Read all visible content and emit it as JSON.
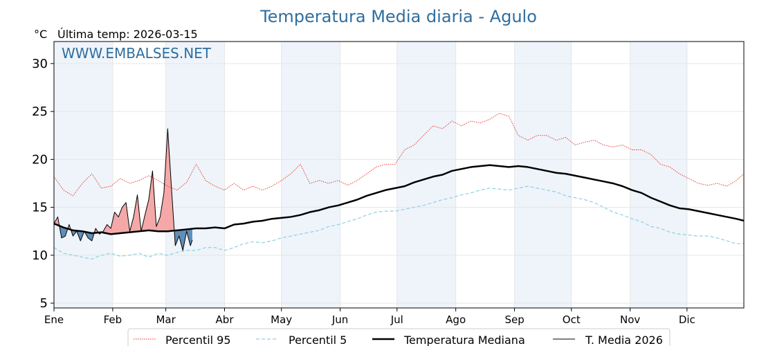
{
  "chart_data": {
    "type": "line",
    "title": "Temperatura Media diaria - Agulo",
    "unit_label": "°C",
    "subtitle": "Última temp: 2026-03-15",
    "watermark": "WWW.EMBALSES.NET",
    "x_tick_labels": [
      "Ene",
      "Feb",
      "Mar",
      "Abr",
      "May",
      "Jun",
      "Jul",
      "Ago",
      "Sep",
      "Oct",
      "Nov",
      "Dic"
    ],
    "x_tick_days": [
      1,
      32,
      60,
      91,
      121,
      152,
      182,
      213,
      244,
      274,
      305,
      335
    ],
    "xlim": [
      1,
      365
    ],
    "ylim": [
      4.5,
      32.3
    ],
    "y_ticks": [
      5,
      10,
      15,
      20,
      25,
      30
    ],
    "grid": true,
    "shaded_month_bands": true,
    "legend_position": "bottom-center",
    "colors": {
      "title": "#2f6e9f",
      "p95": "#e8281e",
      "p5": "#8ecfe4",
      "median": "#000000",
      "current": "#000000",
      "above_fill": "#f4a8a8",
      "below_fill": "#5f8fb8",
      "band": "#eef4fa"
    },
    "series": [
      {
        "name": "Percentil 95",
        "style": "dotted-red",
        "x": [
          1,
          6,
          11,
          16,
          21,
          26,
          31,
          36,
          41,
          46,
          51,
          56,
          61,
          66,
          71,
          76,
          81,
          86,
          91,
          96,
          101,
          106,
          111,
          116,
          121,
          126,
          131,
          136,
          141,
          146,
          151,
          156,
          161,
          166,
          171,
          176,
          181,
          186,
          191,
          196,
          201,
          206,
          211,
          216,
          221,
          226,
          231,
          236,
          241,
          246,
          251,
          256,
          261,
          266,
          271,
          276,
          281,
          286,
          291,
          296,
          301,
          306,
          311,
          316,
          321,
          326,
          331,
          336,
          341,
          346,
          351,
          356,
          361,
          365
        ],
        "y": [
          18.2,
          16.8,
          16.2,
          17.5,
          18.5,
          17.0,
          17.2,
          18.0,
          17.5,
          17.8,
          18.3,
          17.8,
          17.2,
          16.8,
          17.6,
          19.5,
          17.8,
          17.2,
          16.8,
          17.5,
          16.8,
          17.2,
          16.8,
          17.2,
          17.8,
          18.5,
          19.5,
          17.5,
          17.8,
          17.5,
          17.8,
          17.3,
          17.8,
          18.5,
          19.2,
          19.5,
          19.5,
          21.0,
          21.5,
          22.5,
          23.5,
          23.2,
          24.0,
          23.5,
          24.0,
          23.8,
          24.2,
          24.8,
          24.5,
          22.5,
          22.0,
          22.5,
          22.5,
          22.0,
          22.3,
          21.5,
          21.8,
          22.0,
          21.5,
          21.3,
          21.5,
          21.0,
          21.0,
          20.5,
          19.5,
          19.2,
          18.5,
          18.0,
          17.5,
          17.3,
          17.5,
          17.2,
          17.8,
          18.5
        ]
      },
      {
        "name": "Percentil 5",
        "style": "dashed-lightblue",
        "x": [
          1,
          6,
          11,
          16,
          21,
          26,
          31,
          36,
          41,
          46,
          51,
          56,
          61,
          66,
          71,
          76,
          81,
          86,
          91,
          96,
          101,
          106,
          111,
          116,
          121,
          126,
          131,
          136,
          141,
          146,
          151,
          156,
          161,
          166,
          171,
          176,
          181,
          186,
          191,
          196,
          201,
          206,
          211,
          216,
          221,
          226,
          231,
          236,
          241,
          246,
          251,
          256,
          261,
          266,
          271,
          276,
          281,
          286,
          291,
          296,
          301,
          306,
          311,
          316,
          321,
          326,
          331,
          336,
          341,
          346,
          351,
          356,
          361,
          365
        ],
        "y": [
          10.8,
          10.2,
          10.0,
          9.8,
          9.6,
          10.0,
          10.2,
          9.9,
          10.0,
          10.2,
          9.8,
          10.2,
          10.0,
          10.3,
          10.5,
          10.5,
          10.8,
          10.8,
          10.5,
          10.8,
          11.2,
          11.4,
          11.3,
          11.5,
          11.8,
          12.0,
          12.2,
          12.4,
          12.6,
          13.0,
          13.2,
          13.5,
          13.8,
          14.2,
          14.5,
          14.6,
          14.6,
          14.8,
          15.0,
          15.2,
          15.5,
          15.8,
          16.0,
          16.3,
          16.5,
          16.8,
          17.0,
          16.9,
          16.8,
          17.0,
          17.2,
          17.0,
          16.8,
          16.6,
          16.2,
          16.0,
          15.8,
          15.5,
          15.0,
          14.5,
          14.2,
          13.8,
          13.5,
          13.0,
          12.8,
          12.4,
          12.2,
          12.1,
          12.0,
          12.0,
          11.8,
          11.5,
          11.2,
          11.2
        ]
      },
      {
        "name": "Temperatura Mediana",
        "style": "solid-thick-black",
        "x": [
          1,
          6,
          11,
          16,
          21,
          26,
          31,
          36,
          41,
          46,
          51,
          56,
          61,
          66,
          71,
          76,
          81,
          86,
          91,
          96,
          101,
          106,
          111,
          116,
          121,
          126,
          131,
          136,
          141,
          146,
          151,
          156,
          161,
          166,
          171,
          176,
          181,
          186,
          191,
          196,
          201,
          206,
          211,
          216,
          221,
          226,
          231,
          236,
          241,
          246,
          251,
          256,
          261,
          266,
          271,
          276,
          281,
          286,
          291,
          296,
          301,
          306,
          311,
          316,
          321,
          326,
          331,
          336,
          341,
          346,
          351,
          356,
          361,
          365
        ],
        "y": [
          13.3,
          12.9,
          12.6,
          12.5,
          12.3,
          12.4,
          12.2,
          12.3,
          12.4,
          12.5,
          12.6,
          12.5,
          12.5,
          12.6,
          12.7,
          12.8,
          12.8,
          12.9,
          12.8,
          13.2,
          13.3,
          13.5,
          13.6,
          13.8,
          13.9,
          14.0,
          14.2,
          14.5,
          14.7,
          15.0,
          15.2,
          15.5,
          15.8,
          16.2,
          16.5,
          16.8,
          17.0,
          17.2,
          17.6,
          17.9,
          18.2,
          18.4,
          18.8,
          19.0,
          19.2,
          19.3,
          19.4,
          19.3,
          19.2,
          19.3,
          19.2,
          19.0,
          18.8,
          18.6,
          18.5,
          18.3,
          18.1,
          17.9,
          17.7,
          17.5,
          17.2,
          16.8,
          16.5,
          16.0,
          15.6,
          15.2,
          14.9,
          14.8,
          14.6,
          14.4,
          14.2,
          14.0,
          13.8,
          13.6
        ]
      },
      {
        "name": "T. Media 2026",
        "style": "solid-thin-black",
        "x": [
          1,
          3,
          5,
          7,
          9,
          11,
          13,
          15,
          17,
          19,
          21,
          23,
          25,
          27,
          29,
          31,
          33,
          35,
          37,
          39,
          41,
          43,
          45,
          47,
          49,
          51,
          53,
          55,
          57,
          59,
          61,
          63,
          65,
          67,
          69,
          71,
          73,
          74
        ],
        "y": [
          13.3,
          14.0,
          11.8,
          12.0,
          13.2,
          12.0,
          12.5,
          11.5,
          12.5,
          11.8,
          11.5,
          12.8,
          12.2,
          12.5,
          13.2,
          12.8,
          14.5,
          14.0,
          15.0,
          15.5,
          12.5,
          14.0,
          16.3,
          12.5,
          14.2,
          15.8,
          18.8,
          13.0,
          14.0,
          16.5,
          23.2,
          17.0,
          11.0,
          12.0,
          10.5,
          12.5,
          11.0,
          11.6
        ]
      }
    ]
  }
}
